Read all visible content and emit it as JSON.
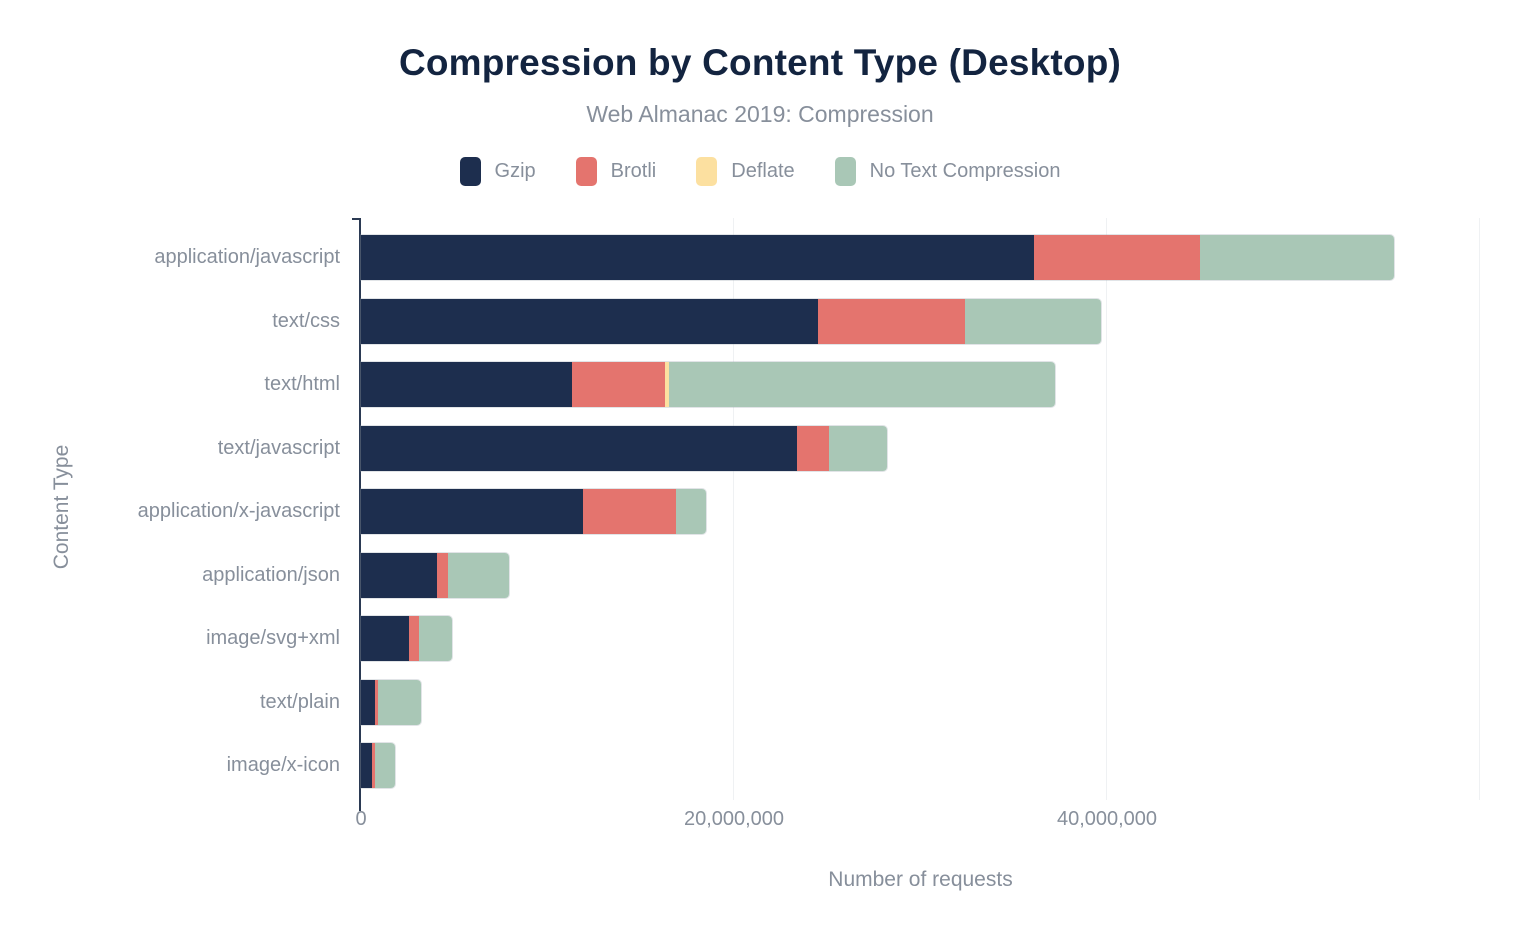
{
  "colors": {
    "background": "#ffffff",
    "title_text": "#132440",
    "muted_text": "#878f9b",
    "axis_line": "#2b3a53",
    "gridline": "#eff1f3"
  },
  "chart_data": {
    "type": "bar",
    "orientation": "horizontal",
    "stacked": true,
    "title": "Compression by Content Type (Desktop)",
    "subtitle": "Web Almanac 2019: Compression",
    "xlabel": "Number of requests",
    "ylabel": "Content Type",
    "xlim": [
      0,
      60000000
    ],
    "grid": true,
    "gridlines": [
      20000000,
      40000000,
      60000000
    ],
    "x_ticks": [
      {
        "value": 0,
        "label": "0"
      },
      {
        "value": 20000000,
        "label": "20,000,000"
      },
      {
        "value": 40000000,
        "label": "40,000,000"
      }
    ],
    "legend_position": "top",
    "categories": [
      "application/javascript",
      "text/css",
      "text/html",
      "text/javascript",
      "application/x-javascript",
      "application/json",
      "image/svg+xml",
      "text/plain",
      "image/x-icon"
    ],
    "series": [
      {
        "name": "Gzip",
        "color": "#1d2e4e",
        "values": [
          36100000,
          24500000,
          11300000,
          23400000,
          11900000,
          4100000,
          2600000,
          750000,
          600000
        ]
      },
      {
        "name": "Brotli",
        "color": "#e4746e",
        "values": [
          8900000,
          7900000,
          5000000,
          1700000,
          5000000,
          550000,
          500000,
          160000,
          130000
        ]
      },
      {
        "name": "Deflate",
        "color": "#fce0a0",
        "values": [
          0,
          0,
          200000,
          0,
          0,
          0,
          0,
          0,
          0
        ]
      },
      {
        "name": "No Text Compression",
        "color": "#a9c7b6",
        "values": [
          10400000,
          7300000,
          20700000,
          3100000,
          1600000,
          3300000,
          1800000,
          2300000,
          1100000
        ]
      }
    ]
  }
}
